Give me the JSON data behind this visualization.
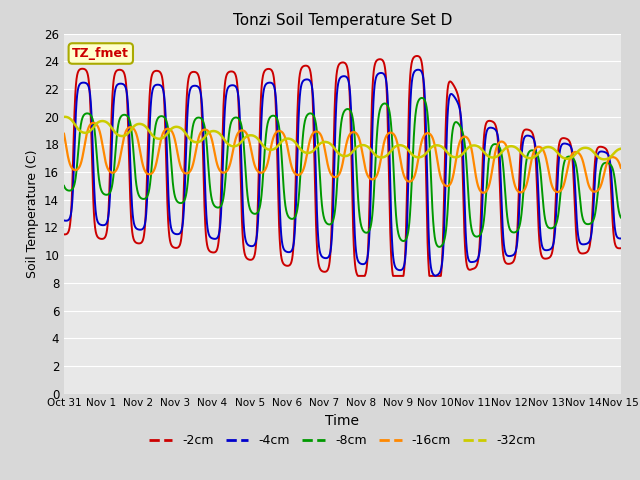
{
  "title": "Tonzi Soil Temperature Set D",
  "xlabel": "Time",
  "ylabel": "Soil Temperature (C)",
  "ylim": [
    0,
    26
  ],
  "yticks": [
    0,
    2,
    4,
    6,
    8,
    10,
    12,
    14,
    16,
    18,
    20,
    22,
    24,
    26
  ],
  "series_colors": [
    "#cc0000",
    "#0000cc",
    "#009900",
    "#ff8800",
    "#cccc00"
  ],
  "series_labels": [
    "-2cm",
    "-4cm",
    "-8cm",
    "-16cm",
    "-32cm"
  ],
  "linewidths": [
    1.4,
    1.4,
    1.4,
    1.6,
    1.8
  ],
  "fig_facecolor": "#d8d8d8",
  "ax_facecolor": "#e8e8e8",
  "grid_color": "#ffffff",
  "annotation_text": "TZ_fmet",
  "annotation_facecolor": "#ffffcc",
  "annotation_edgecolor": "#aaaa00",
  "annotation_textcolor": "#cc0000",
  "xtick_fontsize": 7.5,
  "ytick_fontsize": 8.5,
  "title_fontsize": 11,
  "xlabel_fontsize": 10,
  "ylabel_fontsize": 9,
  "legend_fontsize": 9
}
